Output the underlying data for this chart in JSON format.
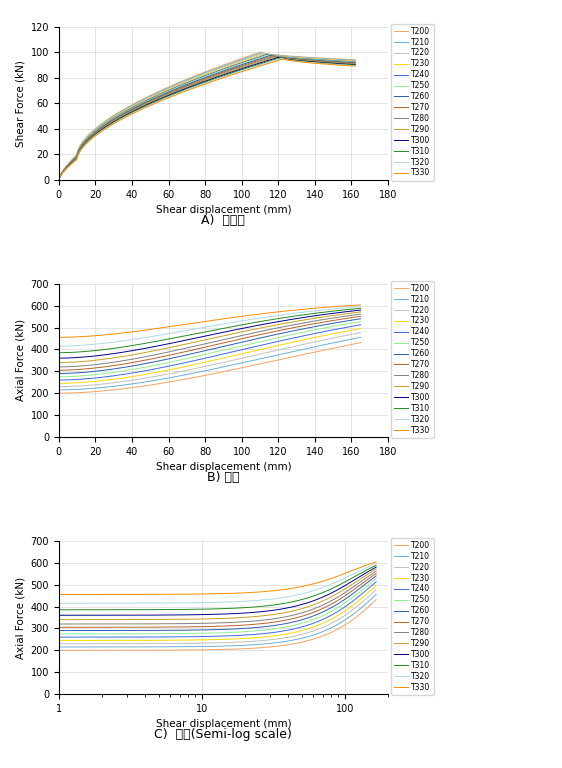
{
  "labels": [
    "T200",
    "T210",
    "T220",
    "T230",
    "T240",
    "T250",
    "T260",
    "T270",
    "T280",
    "T290",
    "T300",
    "T310",
    "T320",
    "T330"
  ],
  "colors": [
    "#f4a460",
    "#6baed6",
    "#c0c0c0",
    "#ffd700",
    "#4169e1",
    "#90ee90",
    "#2c5eab",
    "#b8622a",
    "#808080",
    "#c8a020",
    "#00008b",
    "#228b22",
    "#add8e6",
    "#ff8c00"
  ],
  "shear_xlim": [
    0,
    180
  ],
  "shear_ylim": [
    0,
    120
  ],
  "axial_ylim": [
    0,
    700
  ],
  "axial_xlim": [
    0,
    180
  ],
  "caption_A": "A)  전단력",
  "caption_B": "B) 축력",
  "caption_C": "C)  축력(Semi-log scale)",
  "xlabel": "Shear displacement (mm)",
  "ylabel_shear": "Shear Force (kN)",
  "ylabel_axial": "Axial Force (kN)",
  "converge_force": 625,
  "initial_forces": [
    200,
    215,
    230,
    245,
    260,
    275,
    290,
    305,
    320,
    340,
    360,
    385,
    415,
    455
  ],
  "n_series": 14
}
